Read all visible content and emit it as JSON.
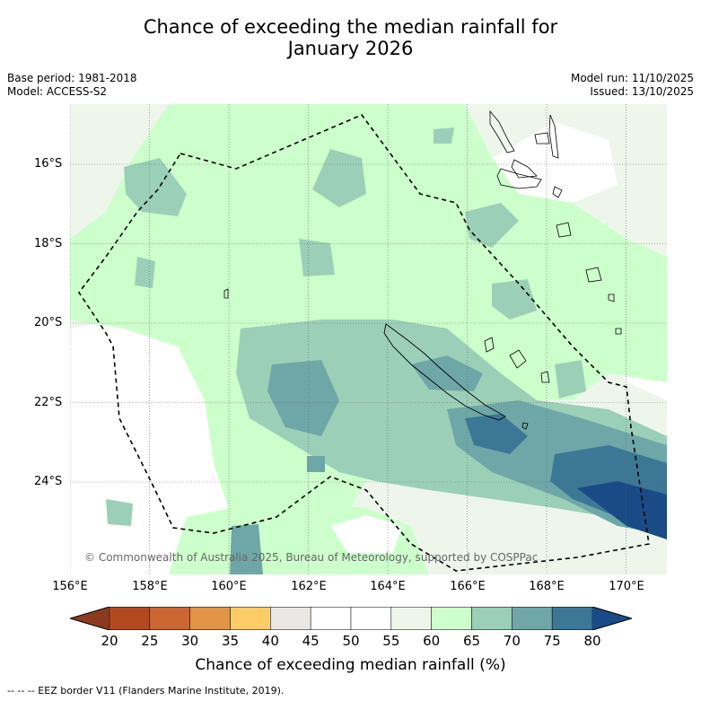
{
  "title_line1": "Chance of exceeding the median rainfall for",
  "title_line2": "January 2026",
  "meta": {
    "base_period": "Base period: 1981-2018",
    "model": "Model: ACCESS-S2",
    "model_run": "Model run: 11/10/2025",
    "issued": "Issued: 13/10/2025"
  },
  "lat_labels": [
    "16°S",
    "18°S",
    "20°S",
    "22°S",
    "24°S"
  ],
  "lon_labels": [
    "156°E",
    "158°E",
    "160°E",
    "162°E",
    "164°E",
    "166°E",
    "168°E",
    "170°E"
  ],
  "copyright": "© Commonwealth of Australia 2025, Bureau of Meteorology, supported by COSPPac",
  "colorbar": {
    "ticks": [
      "20",
      "25",
      "30",
      "35",
      "40",
      "45",
      "50",
      "55",
      "60",
      "65",
      "70",
      "75",
      "80"
    ],
    "colors": [
      "#8c3a1f",
      "#b3491f",
      "#cc6633",
      "#e39447",
      "#fccc66",
      "#e9e7e3",
      "#ffffff",
      "#ffffff",
      "#eef6ec",
      "#ccffcc",
      "#9ccfb8",
      "#6fa7a8",
      "#3c7796",
      "#1a4b86"
    ],
    "title": "Chance of exceeding median rainfall (%)"
  },
  "footnote": "--  --  -- EEZ border V11 (Flanders Marine Institute, 2019)."
}
